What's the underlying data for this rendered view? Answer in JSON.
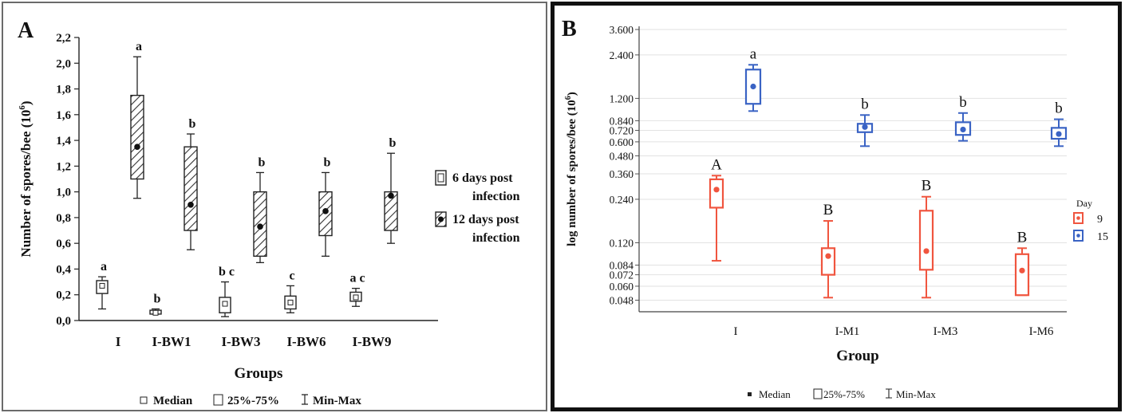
{
  "chart_data": [
    {
      "type": "box",
      "panel_label": "A",
      "ylabel": "Number of spores/bee (10",
      "ylabel_sup": "6",
      "ylabel_close": ")",
      "xlabel": "Groups",
      "yticks": [
        "0,0",
        "0,2",
        "0,4",
        "0,6",
        "0,8",
        "1,0",
        "1,2",
        "1,4",
        "1,6",
        "1,8",
        "2,0",
        "2,2"
      ],
      "ylim": [
        0,
        2.2
      ],
      "categories": [
        "I",
        "I-BW1",
        "I-BW3",
        "I-BW6",
        "I-BW9"
      ],
      "series": [
        {
          "name": "6 days post infection",
          "style": "plain",
          "boxes": [
            {
              "min": 0.09,
              "q1": 0.21,
              "median": 0.27,
              "q3": 0.31,
              "max": 0.34,
              "letter": "a"
            },
            {
              "min": 0.05,
              "q1": 0.05,
              "median": 0.06,
              "q3": 0.08,
              "max": 0.09,
              "letter": "b"
            },
            {
              "min": 0.03,
              "q1": 0.06,
              "median": 0.13,
              "q3": 0.18,
              "max": 0.3,
              "letter": "b c"
            },
            {
              "min": 0.06,
              "q1": 0.09,
              "median": 0.14,
              "q3": 0.19,
              "max": 0.27,
              "letter": "c"
            },
            {
              "min": 0.11,
              "q1": 0.15,
              "median": 0.18,
              "q3": 0.22,
              "max": 0.25,
              "letter": "a c"
            }
          ]
        },
        {
          "name": "12 days post infection",
          "style": "hatched",
          "boxes": [
            {
              "min": 0.95,
              "q1": 1.1,
              "median": 1.35,
              "q3": 1.75,
              "max": 2.05,
              "letter": "a"
            },
            {
              "min": 0.55,
              "q1": 0.7,
              "median": 0.9,
              "q3": 1.35,
              "max": 1.45,
              "letter": "b"
            },
            {
              "min": 0.45,
              "q1": 0.5,
              "median": 0.73,
              "q3": 1.0,
              "max": 1.15,
              "letter": "b"
            },
            {
              "min": 0.5,
              "q1": 0.66,
              "median": 0.85,
              "q3": 1.0,
              "max": 1.15,
              "letter": "b"
            },
            {
              "min": 0.6,
              "q1": 0.7,
              "median": 0.97,
              "q3": 1.0,
              "max": 1.3,
              "letter": "b"
            }
          ]
        }
      ],
      "legend": [
        "6 days post",
        "infection",
        "12 days post",
        "infection"
      ],
      "footer": {
        "median": "Median",
        "box": "25%-75%",
        "range": "Min-Max"
      }
    },
    {
      "type": "box",
      "panel_label": "B",
      "ylabel": "log number of spores/bee (10",
      "ylabel_sup": "6",
      "ylabel_close": ")",
      "xlabel": "Group",
      "yscale": "log",
      "yticks": [
        "0.048",
        "0.060",
        "0.072",
        "0.084",
        "0.120",
        "0.240",
        "0.360",
        "0.480",
        "0.600",
        "0.720",
        "0.840",
        "1.200",
        "2.400",
        "3.600"
      ],
      "ytick_values": [
        0.048,
        0.06,
        0.072,
        0.084,
        0.12,
        0.24,
        0.36,
        0.48,
        0.6,
        0.72,
        0.84,
        1.2,
        2.4,
        3.6
      ],
      "ylim": [
        0.042,
        3.6
      ],
      "categories": [
        "I",
        "I-M1",
        "I-M3",
        "I-M6"
      ],
      "legend_title": "Day",
      "series": [
        {
          "name": "9",
          "color": "#f0553f",
          "boxes": [
            {
              "min": 0.09,
              "q1": 0.21,
              "median": 0.28,
              "q3": 0.33,
              "max": 0.35,
              "letter": "A"
            },
            {
              "min": 0.05,
              "q1": 0.072,
              "median": 0.097,
              "q3": 0.11,
              "max": 0.17,
              "letter": "B"
            },
            {
              "min": 0.05,
              "q1": 0.078,
              "median": 0.105,
              "q3": 0.2,
              "max": 0.25,
              "letter": "B"
            },
            {
              "min": 0.052,
              "q1": 0.052,
              "median": 0.077,
              "q3": 0.1,
              "max": 0.11,
              "letter": "B"
            }
          ]
        },
        {
          "name": "15",
          "color": "#3a63c4",
          "boxes": [
            {
              "min": 0.98,
              "q1": 1.1,
              "median": 1.45,
              "q3": 1.9,
              "max": 2.05,
              "letter": "a"
            },
            {
              "min": 0.56,
              "q1": 0.7,
              "median": 0.76,
              "q3": 0.8,
              "max": 0.92,
              "letter": "b"
            },
            {
              "min": 0.61,
              "q1": 0.67,
              "median": 0.73,
              "q3": 0.82,
              "max": 0.95,
              "letter": "b"
            },
            {
              "min": 0.56,
              "q1": 0.63,
              "median": 0.68,
              "q3": 0.75,
              "max": 0.86,
              "letter": "b"
            }
          ]
        }
      ],
      "footer": {
        "median": "Median",
        "box": "25%-75%",
        "range": "Min-Max"
      }
    }
  ]
}
